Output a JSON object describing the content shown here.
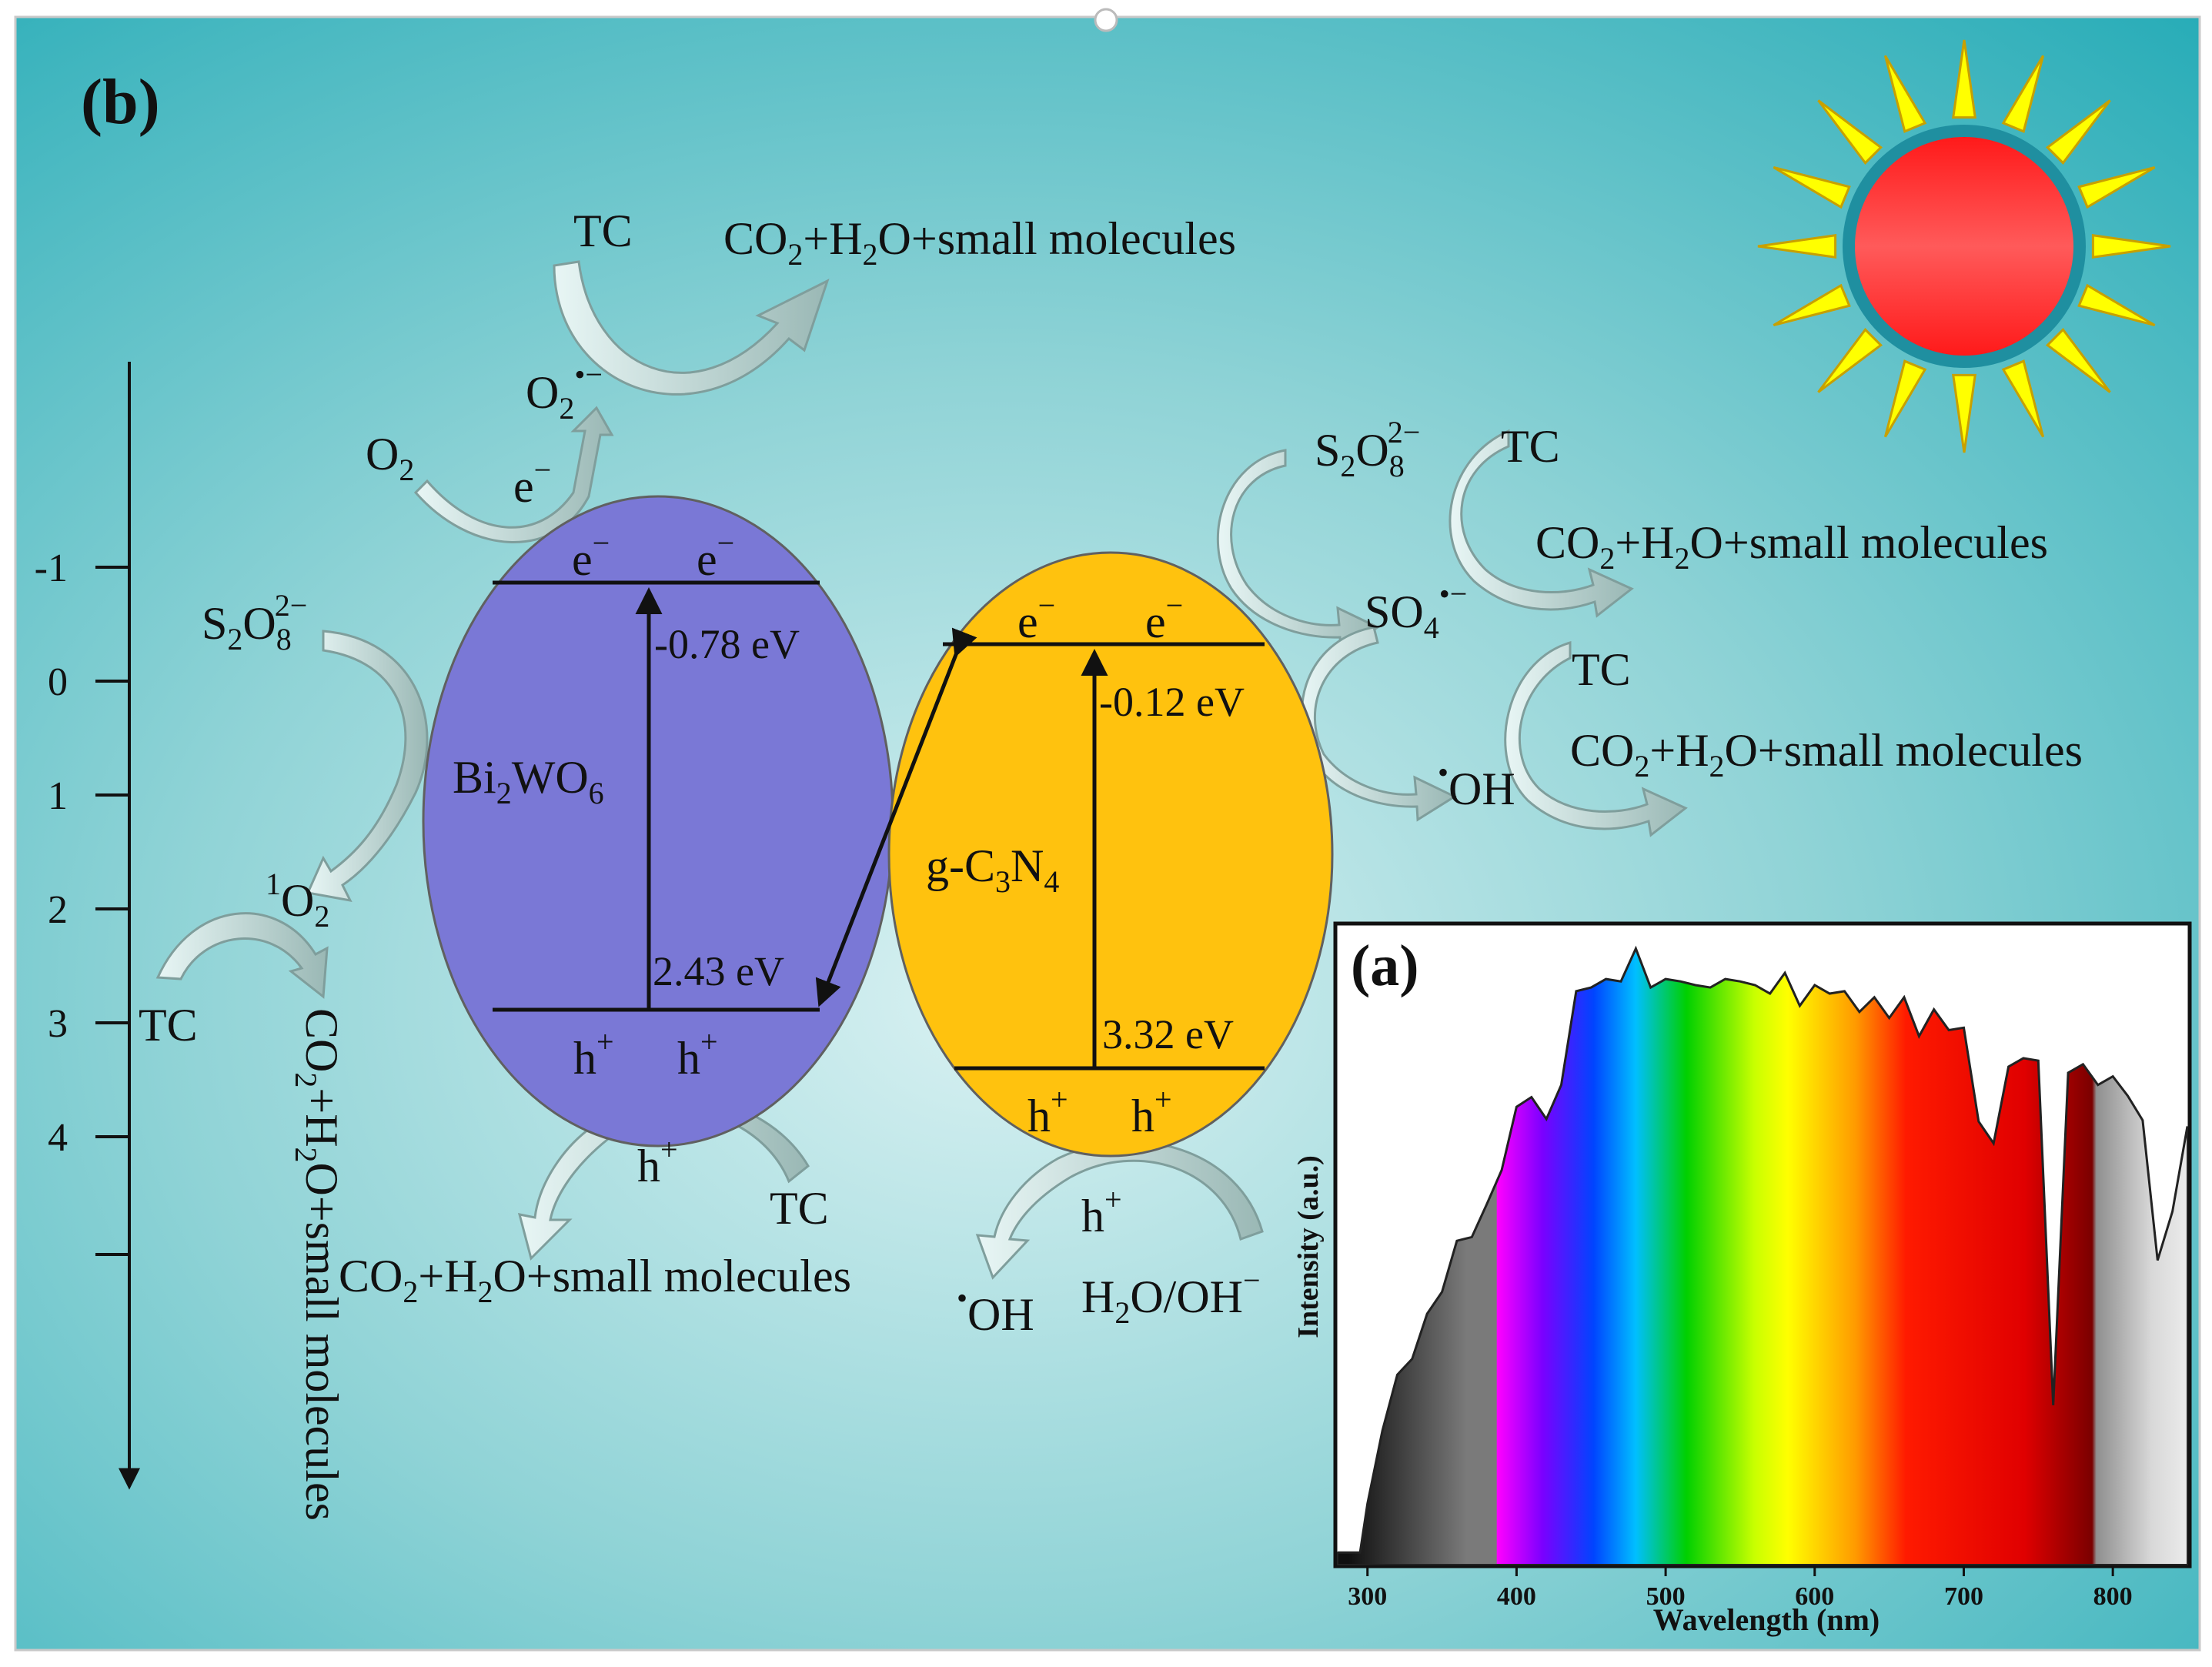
{
  "panel_b_label": "(b)",
  "panel_a_label": "(a)",
  "axis": {
    "ticks": [
      {
        "label": "-1",
        "value": -1
      },
      {
        "label": "0",
        "value": 0
      },
      {
        "label": "1",
        "value": 1
      },
      {
        "label": "2",
        "value": 2
      },
      {
        "label": "3",
        "value": 3
      },
      {
        "label": "4",
        "value": 4
      }
    ]
  },
  "bi2wo6": {
    "name": "Bi",
    "name_sub1": "2",
    "name_mid": "WO",
    "name_sub2": "6",
    "cb_label": "-0.78 eV",
    "vb_label": "2.43 eV",
    "electron": "e",
    "hole": "h"
  },
  "gc3n4": {
    "name_pre": "g-C",
    "name_sub1": "3",
    "name_mid": "N",
    "name_sub2": "4",
    "cb_label": "-0.12 eV",
    "vb_label": "3.32 eV",
    "electron": "e",
    "hole": "h"
  },
  "species": {
    "tc": "TC",
    "o2": "O",
    "o2_sub": "2",
    "superoxide": "O",
    "superoxide_sub": "2",
    "superoxide_sup": "•−",
    "persulfate": "S",
    "persulfate_sub1": "2",
    "persulfate_mid": "O",
    "persulfate_sub2": "8",
    "persulfate_sup": "2−",
    "sulfate_radical": "SO",
    "sulfate_radical_sub": "4",
    "sulfate_radical_sup": "•−",
    "hydroxyl": "OH",
    "hydroxyl_dot": "•",
    "singlet_o2_sup": "1",
    "singlet_o2": "O",
    "singlet_o2_sub": "2",
    "water": "H",
    "water_sub": "2",
    "water_rest": "O/OH",
    "water_sup": "−",
    "minus": "−",
    "plus": "+"
  },
  "products": {
    "co2": "CO",
    "sub2": "2",
    "plus_h": "+H",
    "o_rest": "O+small molecules"
  },
  "spectrum": {
    "ylabel": "Intensity (a.u.)",
    "xlabel": "Wavelength (nm)",
    "x_ticks": [
      "300",
      "400",
      "500",
      "600",
      "700",
      "800"
    ],
    "x_range": [
      280,
      850
    ]
  },
  "chart_data": {
    "type": "area",
    "x": [
      280,
      295,
      300,
      310,
      320,
      330,
      340,
      350,
      360,
      370,
      380,
      390,
      400,
      410,
      420,
      430,
      440,
      450,
      460,
      470,
      480,
      490,
      500,
      510,
      520,
      530,
      540,
      550,
      560,
      570,
      580,
      590,
      600,
      610,
      620,
      630,
      640,
      650,
      660,
      670,
      680,
      690,
      700,
      710,
      720,
      730,
      740,
      750,
      760,
      770,
      780,
      790,
      800,
      810,
      820,
      830,
      840,
      850
    ],
    "y": [
      0.02,
      0.02,
      0.1,
      0.22,
      0.3,
      0.35,
      0.4,
      0.46,
      0.52,
      0.55,
      0.58,
      0.66,
      0.74,
      0.78,
      0.72,
      0.8,
      0.93,
      0.96,
      0.95,
      0.97,
      1.0,
      0.96,
      0.95,
      0.97,
      0.94,
      0.96,
      0.95,
      0.97,
      0.94,
      0.95,
      0.96,
      0.93,
      0.94,
      0.95,
      0.93,
      0.92,
      0.92,
      0.91,
      0.92,
      0.88,
      0.9,
      0.89,
      0.87,
      0.74,
      0.68,
      0.83,
      0.82,
      0.84,
      0.25,
      0.82,
      0.81,
      0.8,
      0.79,
      0.77,
      0.73,
      0.5,
      0.58,
      0.72
    ],
    "xlabel": "Wavelength (nm)",
    "ylabel": "Intensity (a.u.)",
    "xlim": [
      280,
      850
    ]
  }
}
